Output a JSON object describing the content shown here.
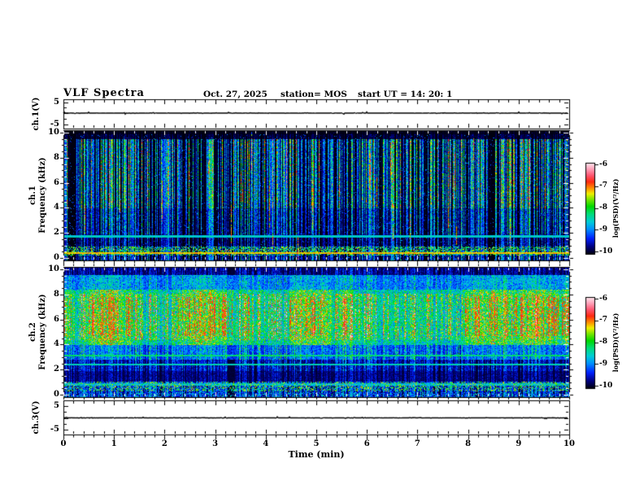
{
  "figure": {
    "title": "VLF Spectra",
    "date": "Oct. 27, 2025",
    "station_label": "station= MOS",
    "start_ut_label": "start UT  =   14: 20: 1"
  },
  "x_axis": {
    "label": "Time (min)",
    "min": 0,
    "max": 10,
    "major_ticks": [
      "0",
      "1",
      "2",
      "3",
      "4",
      "5",
      "6",
      "7",
      "8",
      "9",
      "10"
    ],
    "minor_ticks_per_major": 5
  },
  "panels": {
    "ch1_voltage": {
      "ylabel": "ch.1(V)",
      "yticks": [
        "5",
        "-5"
      ],
      "trace_value_v": 0
    },
    "ch1_spectrogram": {
      "ylabel_channel": "ch.1",
      "ylabel_axis": "Frequency (kHz)",
      "yticks": [
        "10",
        "8",
        "6",
        "4",
        "2",
        "0"
      ],
      "y_minor_step_khz": 0.5
    },
    "ch2_spectrogram": {
      "ylabel_channel": "ch.2",
      "ylabel_axis": "Frequency (kHz)",
      "yticks": [
        "10",
        "8",
        "6",
        "4",
        "2",
        "0"
      ],
      "y_minor_step_khz": 0.5
    },
    "ch3_voltage": {
      "ylabel": "ch.3(V)",
      "yticks": [
        "5",
        "-5"
      ],
      "trace_value_v": 0
    }
  },
  "colorbars": {
    "label": "log(PSD)(V²/Hz)",
    "ticks": [
      "-6",
      "-7",
      "-8",
      "-9",
      "-10"
    ],
    "value_range": [
      -10,
      -6
    ],
    "stops": [
      [
        0.0,
        "#000010"
      ],
      [
        0.08,
        "#000080"
      ],
      [
        0.17,
        "#0020ff"
      ],
      [
        0.27,
        "#0090ff"
      ],
      [
        0.35,
        "#00ccd8"
      ],
      [
        0.44,
        "#00dd77"
      ],
      [
        0.52,
        "#00d800"
      ],
      [
        0.6,
        "#7fe800"
      ],
      [
        0.66,
        "#f0f000"
      ],
      [
        0.72,
        "#ff9000"
      ],
      [
        0.79,
        "#ff2a10"
      ],
      [
        0.86,
        "#ff5570"
      ],
      [
        0.93,
        "#ffa0b8"
      ],
      [
        1.0,
        "#ffecf2"
      ]
    ]
  },
  "chart_data": [
    {
      "id": "ch1_waveform",
      "type": "line",
      "panel_label": "ch.1(V)",
      "x_range_min": [
        0,
        10
      ],
      "y_ticks_v": [
        5,
        -5
      ],
      "series": [
        {
          "name": "ch.1 voltage",
          "summary": "flat trace at ~0 V for the whole 10 minutes with tiny noise blips"
        }
      ]
    },
    {
      "id": "ch1_spectrogram",
      "type": "heatmap",
      "panel_label": "ch.1 Frequency (kHz)",
      "x_range_min": [
        0,
        10
      ],
      "y_range_khz": [
        0,
        10
      ],
      "z_scale": {
        "label": "log(PSD)(V²/Hz)",
        "range": [
          -10,
          -6
        ]
      },
      "summary": "mostly black background filled with dense vertical lightning-sferic streaks (blue/cyan/green, occasional red cores), strongest between 4 and 9.5 kHz; quiet above ~9.7 kHz",
      "features": {
        "background_level": -10,
        "sferic_streaks": {
          "density_per_min": 50,
          "coverage_khz": [
            0.3,
            9.7
          ],
          "strongest_band_khz": [
            4,
            9.5
          ],
          "typical_level": -8.5,
          "strong_core_level": -7
        },
        "horizontal_tones_khz": [
          {
            "f": 0.6,
            "level": -7.5
          },
          {
            "f": 1.9,
            "level": -8.8
          },
          {
            "f": 2.0,
            "level": -8.9
          }
        ],
        "bottom_speckle_band_khz": [
          0.45,
          1.15
        ],
        "quiet_above_khz": 9.7
      }
    },
    {
      "id": "ch2_spectrogram",
      "type": "heatmap",
      "panel_label": "ch.2 Frequency (kHz)",
      "x_range_min": [
        0,
        10
      ],
      "y_range_khz": [
        0,
        10
      ],
      "z_scale": {
        "label": "log(PSD)(V²/Hz)",
        "range": [
          -10,
          -6
        ]
      },
      "summary": "dense broadband activity: continuous green/cyan wash 4-8.6 kHz with yellow-orange-red hot patches 5-8 kHz, vertical sferic streaks at all frequencies, darker band 1.3-2.4 kHz",
      "features": {
        "background_wash": {
          "band_khz": [
            4.2,
            8.6
          ],
          "level": -8.3
        },
        "hot_patches": {
          "band_khz": [
            5,
            8
          ],
          "level": -7
        },
        "sferic_streaks": {
          "density_per_min": 80,
          "coverage_khz": [
            0.2,
            9.8
          ]
        },
        "horizontal_tones_khz": [
          {
            "f": 3.35,
            "level": -8.5
          },
          {
            "f": 2.65,
            "level": -8.7
          },
          {
            "f": 1.1,
            "level": -8.9
          },
          {
            "f": 1.0,
            "level": -9.0
          }
        ],
        "quiet_band_khz": [
          1.3,
          2.4
        ],
        "bottom_speckle_band_khz": [
          0.5,
          1.25
        ]
      }
    },
    {
      "id": "ch3_waveform",
      "type": "line",
      "panel_label": "ch.3(V)",
      "x_range_min": [
        0,
        10
      ],
      "y_ticks_v": [
        5,
        -5
      ],
      "series": [
        {
          "name": "ch.3 voltage",
          "summary": "flat trace at ~0 V for the whole 10 minutes with tiny noise blips"
        }
      ]
    }
  ]
}
